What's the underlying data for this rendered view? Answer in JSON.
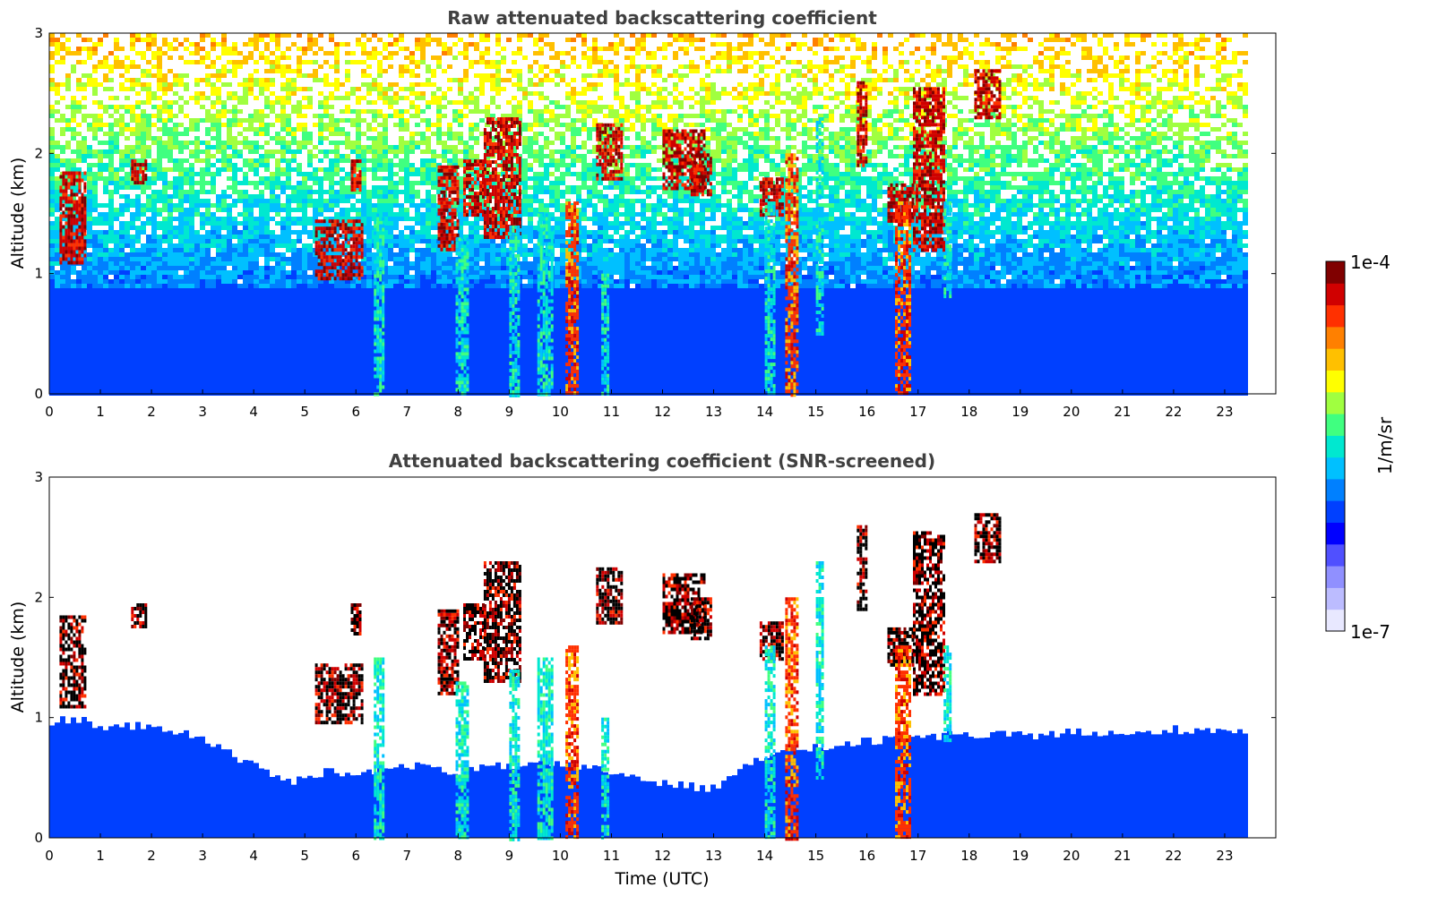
{
  "chart_data": [
    {
      "type": "heatmap",
      "title": "Raw attenuated backscattering coefficient",
      "xlabel": "",
      "ylabel": "Altitude (km)",
      "xlim": [
        0,
        24
      ],
      "ylim": [
        0,
        3
      ],
      "x_ticks": [
        0,
        1,
        2,
        3,
        4,
        5,
        6,
        7,
        8,
        9,
        10,
        11,
        12,
        13,
        14,
        15,
        16,
        17,
        18,
        19,
        20,
        21,
        22,
        23
      ],
      "y_ticks": [
        0,
        1,
        2,
        3
      ],
      "data_end_hour": 23.45,
      "surface_layer_top_km": 0.9,
      "features": [
        {
          "t_start": 0.2,
          "t_end": 0.7,
          "z_bottom": 1.1,
          "z_top": 1.85,
          "level": "high"
        },
        {
          "t_start": 1.6,
          "t_end": 1.9,
          "z_bottom": 1.75,
          "z_top": 1.95,
          "level": "high"
        },
        {
          "t_start": 5.2,
          "t_end": 6.1,
          "z_bottom": 0.95,
          "z_top": 1.45,
          "level": "high"
        },
        {
          "t_start": 5.9,
          "t_end": 6.1,
          "z_bottom": 1.7,
          "z_top": 1.95,
          "level": "high"
        },
        {
          "t_start": 6.35,
          "t_end": 6.55,
          "z_bottom": 0.0,
          "z_top": 1.5,
          "level": "medium"
        },
        {
          "t_start": 7.6,
          "t_end": 8.0,
          "z_bottom": 1.2,
          "z_top": 1.9,
          "level": "high"
        },
        {
          "t_start": 7.95,
          "t_end": 8.2,
          "z_bottom": 0.0,
          "z_top": 1.3,
          "level": "medium"
        },
        {
          "t_start": 8.1,
          "t_end": 8.5,
          "z_bottom": 1.5,
          "z_top": 1.95,
          "level": "high"
        },
        {
          "t_start": 8.5,
          "t_end": 9.2,
          "z_bottom": 1.3,
          "z_top": 2.3,
          "level": "high"
        },
        {
          "t_start": 9.0,
          "t_end": 9.2,
          "z_bottom": 0.0,
          "z_top": 1.4,
          "level": "medium"
        },
        {
          "t_start": 9.55,
          "t_end": 9.85,
          "z_bottom": 0.0,
          "z_top": 1.5,
          "level": "medium"
        },
        {
          "t_start": 10.1,
          "t_end": 10.35,
          "z_bottom": 0.0,
          "z_top": 1.6,
          "level": "peak"
        },
        {
          "t_start": 10.7,
          "t_end": 11.2,
          "z_bottom": 1.8,
          "z_top": 2.25,
          "level": "high"
        },
        {
          "t_start": 10.8,
          "t_end": 10.95,
          "z_bottom": 0.0,
          "z_top": 1.0,
          "level": "medium"
        },
        {
          "t_start": 12.0,
          "t_end": 12.8,
          "z_bottom": 1.7,
          "z_top": 2.2,
          "level": "high"
        },
        {
          "t_start": 12.55,
          "t_end": 12.95,
          "z_bottom": 1.65,
          "z_top": 2.0,
          "level": "high"
        },
        {
          "t_start": 13.9,
          "t_end": 14.35,
          "z_bottom": 1.5,
          "z_top": 1.8,
          "level": "high"
        },
        {
          "t_start": 14.0,
          "t_end": 14.2,
          "z_bottom": 0.0,
          "z_top": 1.6,
          "level": "medium"
        },
        {
          "t_start": 14.4,
          "t_end": 14.65,
          "z_bottom": 0.0,
          "z_top": 2.0,
          "level": "peak"
        },
        {
          "t_start": 15.0,
          "t_end": 15.15,
          "z_bottom": 0.5,
          "z_top": 2.3,
          "level": "medium"
        },
        {
          "t_start": 15.8,
          "t_end": 16.0,
          "z_bottom": 1.9,
          "z_top": 2.6,
          "level": "high"
        },
        {
          "t_start": 16.4,
          "t_end": 16.9,
          "z_bottom": 1.45,
          "z_top": 1.75,
          "level": "high"
        },
        {
          "t_start": 16.55,
          "t_end": 16.85,
          "z_bottom": 0.0,
          "z_top": 1.6,
          "level": "peak"
        },
        {
          "t_start": 16.9,
          "t_end": 17.5,
          "z_bottom": 1.2,
          "z_top": 2.55,
          "level": "high"
        },
        {
          "t_start": 17.5,
          "t_end": 17.65,
          "z_bottom": 0.8,
          "z_top": 1.6,
          "level": "medium"
        },
        {
          "t_start": 18.1,
          "t_end": 18.6,
          "z_bottom": 2.3,
          "z_top": 2.7,
          "level": "high"
        }
      ]
    },
    {
      "type": "heatmap",
      "title": "Attenuated backscattering coefficient (SNR-screened)",
      "xlabel": "Time (UTC)",
      "ylabel": "Altitude (km)",
      "xlim": [
        0,
        24
      ],
      "ylim": [
        0,
        3
      ],
      "x_ticks": [
        0,
        1,
        2,
        3,
        4,
        5,
        6,
        7,
        8,
        9,
        10,
        11,
        12,
        13,
        14,
        15,
        16,
        17,
        18,
        19,
        20,
        21,
        22,
        23
      ],
      "y_ticks": [
        0,
        1,
        2,
        3
      ],
      "data_end_hour": 23.45,
      "screened_layer_top_km": [
        [
          0,
          0.95
        ],
        [
          0.5,
          1.0
        ],
        [
          1.0,
          0.9
        ],
        [
          2.0,
          0.95
        ],
        [
          3.0,
          0.8
        ],
        [
          4.0,
          0.6
        ],
        [
          4.7,
          0.45
        ],
        [
          5.3,
          0.55
        ],
        [
          6.0,
          0.55
        ],
        [
          7.0,
          0.6
        ],
        [
          8.0,
          0.55
        ],
        [
          9.0,
          0.6
        ],
        [
          10.0,
          0.6
        ],
        [
          11.0,
          0.55
        ],
        [
          12.0,
          0.45
        ],
        [
          12.9,
          0.4
        ],
        [
          13.5,
          0.6
        ],
        [
          14.0,
          0.7
        ],
        [
          15.0,
          0.75
        ],
        [
          16.0,
          0.8
        ],
        [
          17.0,
          0.85
        ],
        [
          18.0,
          0.85
        ],
        [
          19.0,
          0.85
        ],
        [
          20.0,
          0.88
        ],
        [
          21.0,
          0.85
        ],
        [
          22.0,
          0.9
        ],
        [
          23.45,
          0.9
        ]
      ]
    }
  ],
  "colorbar": {
    "label": "1/m/sr",
    "max_label": "1e-4",
    "min_label": "1e-7",
    "colors": [
      "#e8e8ff",
      "#bcbcff",
      "#9090ff",
      "#5050ff",
      "#0000ff",
      "#0040ff",
      "#0080ff",
      "#00c0ff",
      "#00e8d0",
      "#40ff80",
      "#a0ff40",
      "#ffff00",
      "#ffc000",
      "#ff8000",
      "#ff3000",
      "#d00000",
      "#800000"
    ]
  }
}
